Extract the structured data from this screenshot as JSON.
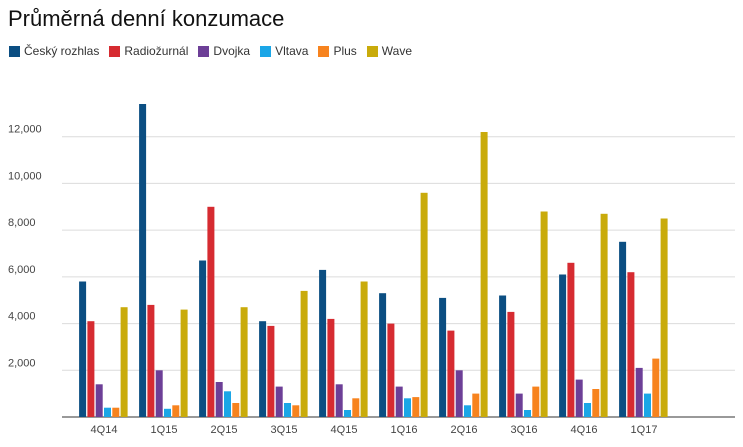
{
  "chart_data": {
    "type": "bar",
    "title": "Průměrná denní konzumace",
    "xlabel": "",
    "ylabel": "",
    "categories": [
      "4Q14",
      "1Q15",
      "2Q15",
      "3Q15",
      "4Q15",
      "1Q16",
      "2Q16",
      "3Q16",
      "4Q16",
      "1Q17"
    ],
    "ylim": [
      0,
      14000
    ],
    "yticks": [
      2000,
      4000,
      6000,
      8000,
      10000,
      12000
    ],
    "ytick_labels": [
      "2,000",
      "4,000",
      "6,000",
      "8,000",
      "10,000",
      "12,000"
    ],
    "grid": true,
    "legend_position": "top-left",
    "series": [
      {
        "name": "Český rozhlas",
        "color": "#0b4e82",
        "values": [
          5800,
          13400,
          6700,
          4100,
          6300,
          5300,
          5100,
          5200,
          6100,
          7500
        ]
      },
      {
        "name": "Radiožurnál",
        "color": "#d62b31",
        "values": [
          4100,
          4800,
          9000,
          3900,
          4200,
          4000,
          3700,
          4500,
          6600,
          6200
        ]
      },
      {
        "name": "Dvojka",
        "color": "#6d3f97",
        "values": [
          1400,
          2000,
          1500,
          1300,
          1400,
          1300,
          2000,
          1000,
          1600,
          2100
        ]
      },
      {
        "name": "Vltava",
        "color": "#1ba6e7",
        "values": [
          400,
          350,
          1100,
          600,
          300,
          800,
          500,
          300,
          600,
          1000
        ]
      },
      {
        "name": "Plus",
        "color": "#f7831e",
        "values": [
          400,
          500,
          600,
          500,
          800,
          850,
          1000,
          1300,
          1200,
          2500
        ]
      },
      {
        "name": "Wave",
        "color": "#c9ab0b",
        "values": [
          4700,
          4600,
          4700,
          5400,
          5800,
          9600,
          12200,
          8800,
          8700,
          8500
        ]
      }
    ]
  }
}
